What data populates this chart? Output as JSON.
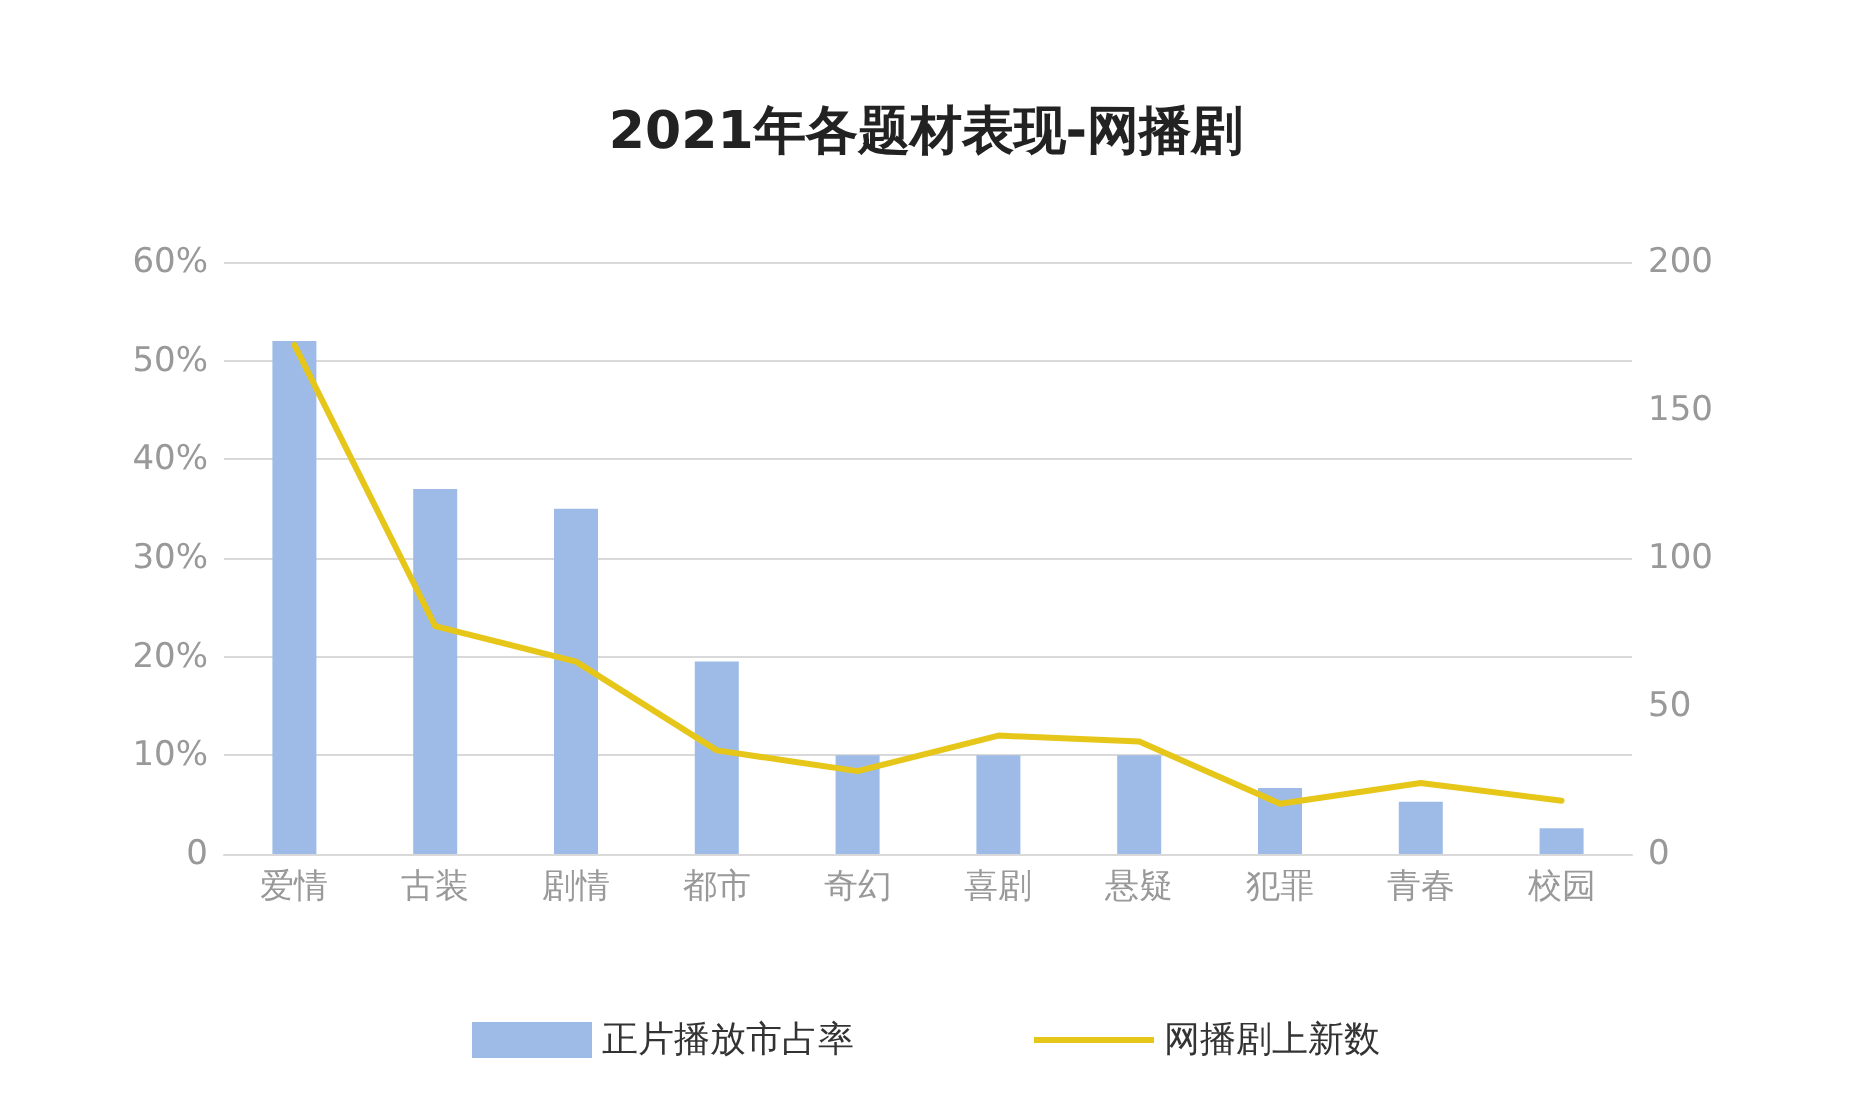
{
  "chart_data": {
    "type": "bar",
    "title": "2021年各题材表现-网播剧",
    "categories": [
      "爱情",
      "古装",
      "剧情",
      "都市",
      "奇幻",
      "喜剧",
      "悬疑",
      "犯罪",
      "青春",
      "校园"
    ],
    "series": [
      {
        "name": "正片播放市占率",
        "color": "#9dbbe6",
        "values": [
          52,
          37,
          35,
          19.5,
          10,
          10,
          10,
          6.7,
          5.3,
          2.6
        ]
      },
      {
        "name": "网播剧上新数",
        "type": "line",
        "axis": "y2",
        "color": "#e6c619",
        "values": [
          172,
          77,
          65,
          35,
          28,
          40,
          38,
          17,
          24,
          18
        ]
      }
    ],
    "ylim": [
      0,
      60
    ],
    "yticks": [
      {
        "value": 0,
        "label": "0"
      },
      {
        "value": 10,
        "label": "10%"
      },
      {
        "value": 20,
        "label": "20%"
      },
      {
        "value": 30,
        "label": "30%"
      },
      {
        "value": 40,
        "label": "40%"
      },
      {
        "value": 50,
        "label": "50%"
      },
      {
        "value": 60,
        "label": "60%"
      }
    ],
    "y2lim": [
      0,
      200
    ],
    "y2ticks": [
      0,
      50,
      100,
      150,
      200
    ],
    "grid": "y",
    "legend": "bottom",
    "marker": "none",
    "line_style": "solid"
  }
}
